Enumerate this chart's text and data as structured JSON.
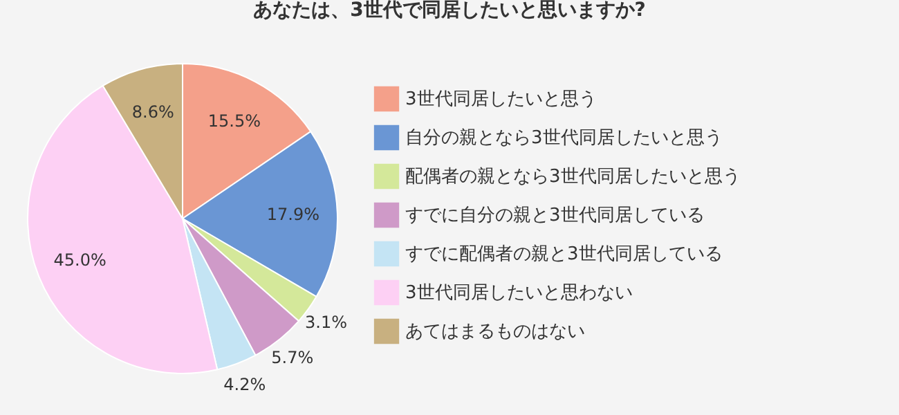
{
  "chart_data": {
    "type": "pie",
    "title": "あなたは、3世代で同居したいと思いますか?",
    "categories": [
      "3世代同居したいと思う",
      "自分の親となら3世代同居したいと思う",
      "配偶者の親となら3世代同居したいと思う",
      "すでに自分の親と3世代同居している",
      "すでに配偶者の親と3世代同居している",
      "3世代同居したいと思わない",
      "あてはまるものはない"
    ],
    "values": [
      15.5,
      17.9,
      3.1,
      5.7,
      4.2,
      45.0,
      8.6
    ],
    "colors": [
      "#f4a08a",
      "#6a96d4",
      "#d4e89a",
      "#cf9ac8",
      "#c4e4f4",
      "#fdd0f4",
      "#c8b080"
    ],
    "value_labels": [
      "15.5%",
      "17.9%",
      "3.1%",
      "5.7%",
      "4.2%",
      "45.0%",
      "8.6%"
    ],
    "legend": "right"
  }
}
